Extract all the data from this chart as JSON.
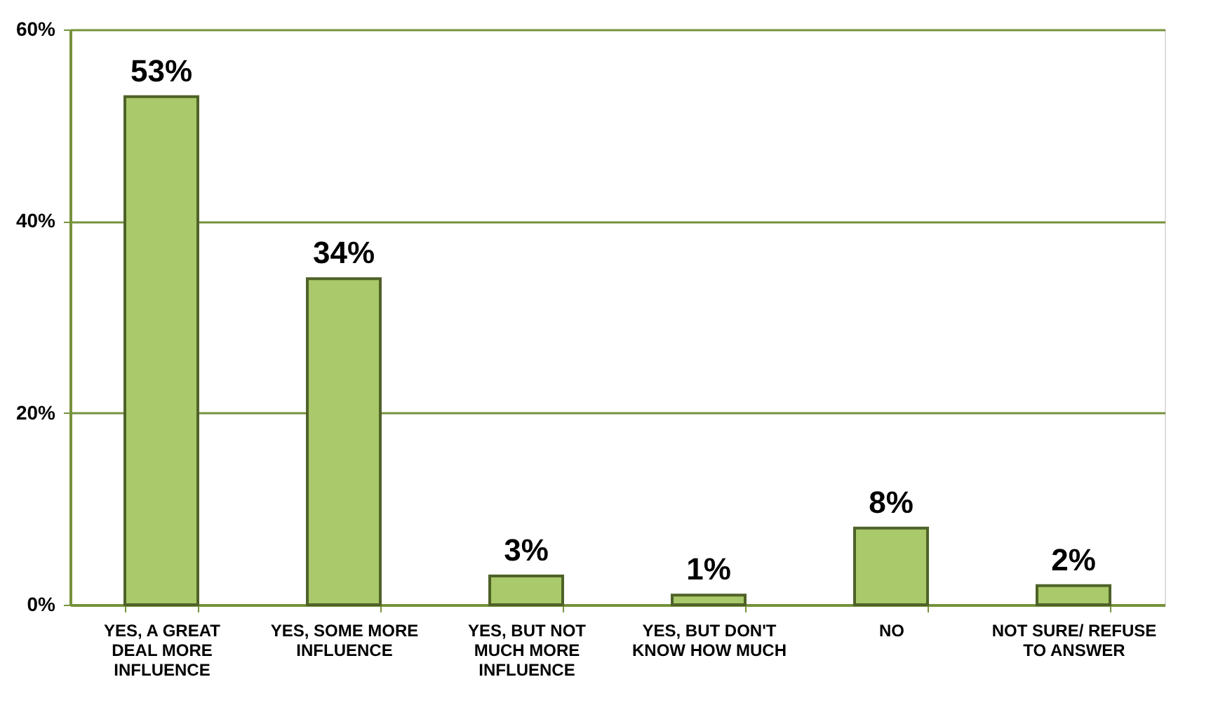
{
  "chart_data": {
    "type": "bar",
    "categories": [
      "YES, A GREAT DEAL MORE INFLUENCE",
      "YES, SOME MORE INFLUENCE",
      "YES, BUT NOT MUCH MORE INFLUENCE",
      "YES, BUT DON'T KNOW HOW MUCH",
      "NO",
      "NOT SURE/ REFUSE TO ANSWER"
    ],
    "values": [
      53,
      34,
      3,
      1,
      8,
      2
    ],
    "color": "#a9c96a",
    "ylim": [
      0,
      60
    ],
    "yticks": [
      {
        "value": 0,
        "label": "0%"
      },
      {
        "value": 20,
        "label": "20%"
      },
      {
        "value": 40,
        "label": "40%"
      },
      {
        "value": 60,
        "label": "60%"
      }
    ],
    "grid": "y",
    "value_labels": [
      "53%",
      "34%",
      "3%",
      "1%",
      "8%",
      "2%"
    ]
  }
}
